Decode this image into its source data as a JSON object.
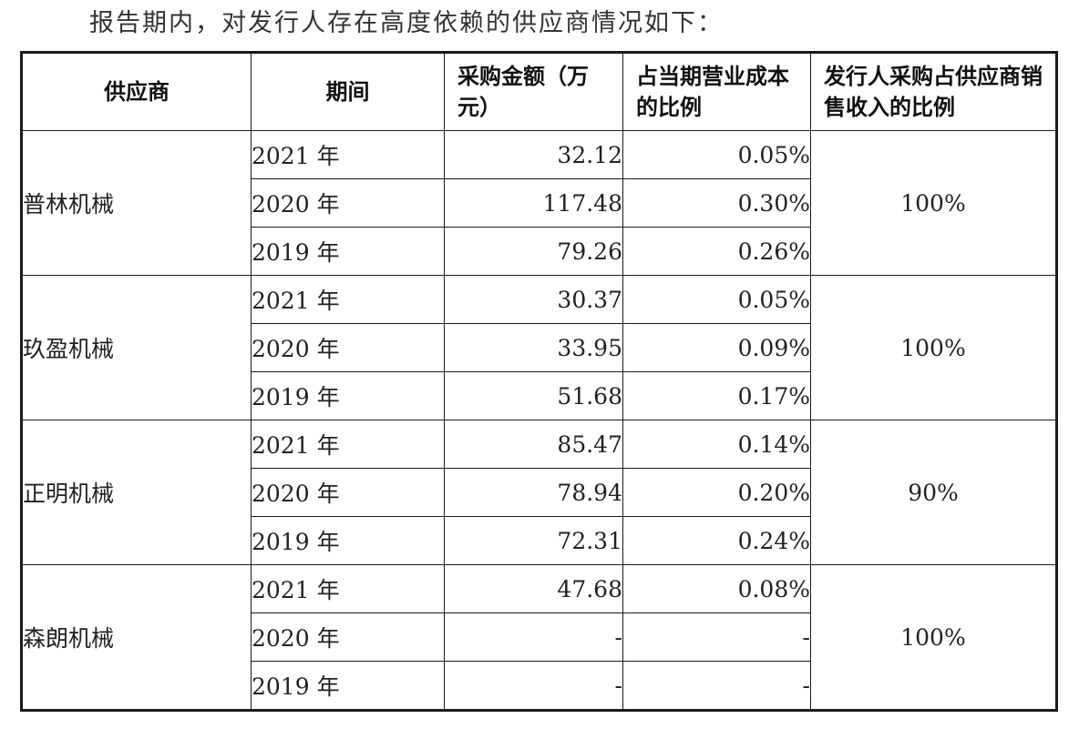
{
  "intro_text": "报告期内，对发行人存在高度依赖的供应商情况如下：",
  "table": {
    "headers": {
      "supplier": "供应商",
      "period": "期间",
      "amount": "采购金额（万元）",
      "cost_ratio": "占当期营业成本的比例",
      "sales_ratio": "发行人采购占供应商销售收入的比例"
    },
    "groups": [
      {
        "supplier": "普林机械",
        "sales_ratio": "100%",
        "rows": [
          {
            "period": "2021 年",
            "amount": "32.12",
            "cost_ratio": "0.05%"
          },
          {
            "period": "2020 年",
            "amount": "117.48",
            "cost_ratio": "0.30%"
          },
          {
            "period": "2019 年",
            "amount": "79.26",
            "cost_ratio": "0.26%"
          }
        ]
      },
      {
        "supplier": "玖盈机械",
        "sales_ratio": "100%",
        "rows": [
          {
            "period": "2021 年",
            "amount": "30.37",
            "cost_ratio": "0.05%"
          },
          {
            "period": "2020 年",
            "amount": "33.95",
            "cost_ratio": "0.09%"
          },
          {
            "period": "2019 年",
            "amount": "51.68",
            "cost_ratio": "0.17%"
          }
        ]
      },
      {
        "supplier": "正明机械",
        "sales_ratio": "90%",
        "rows": [
          {
            "period": "2021 年",
            "amount": "85.47",
            "cost_ratio": "0.14%"
          },
          {
            "period": "2020 年",
            "amount": "78.94",
            "cost_ratio": "0.20%"
          },
          {
            "period": "2019 年",
            "amount": "72.31",
            "cost_ratio": "0.24%"
          }
        ]
      },
      {
        "supplier": "森朗机械",
        "sales_ratio": "100%",
        "rows": [
          {
            "period": "2021 年",
            "amount": "47.68",
            "cost_ratio": "0.08%"
          },
          {
            "period": "2020 年",
            "amount": "-",
            "cost_ratio": "-"
          },
          {
            "period": "2019 年",
            "amount": "-",
            "cost_ratio": "-"
          }
        ]
      }
    ]
  }
}
